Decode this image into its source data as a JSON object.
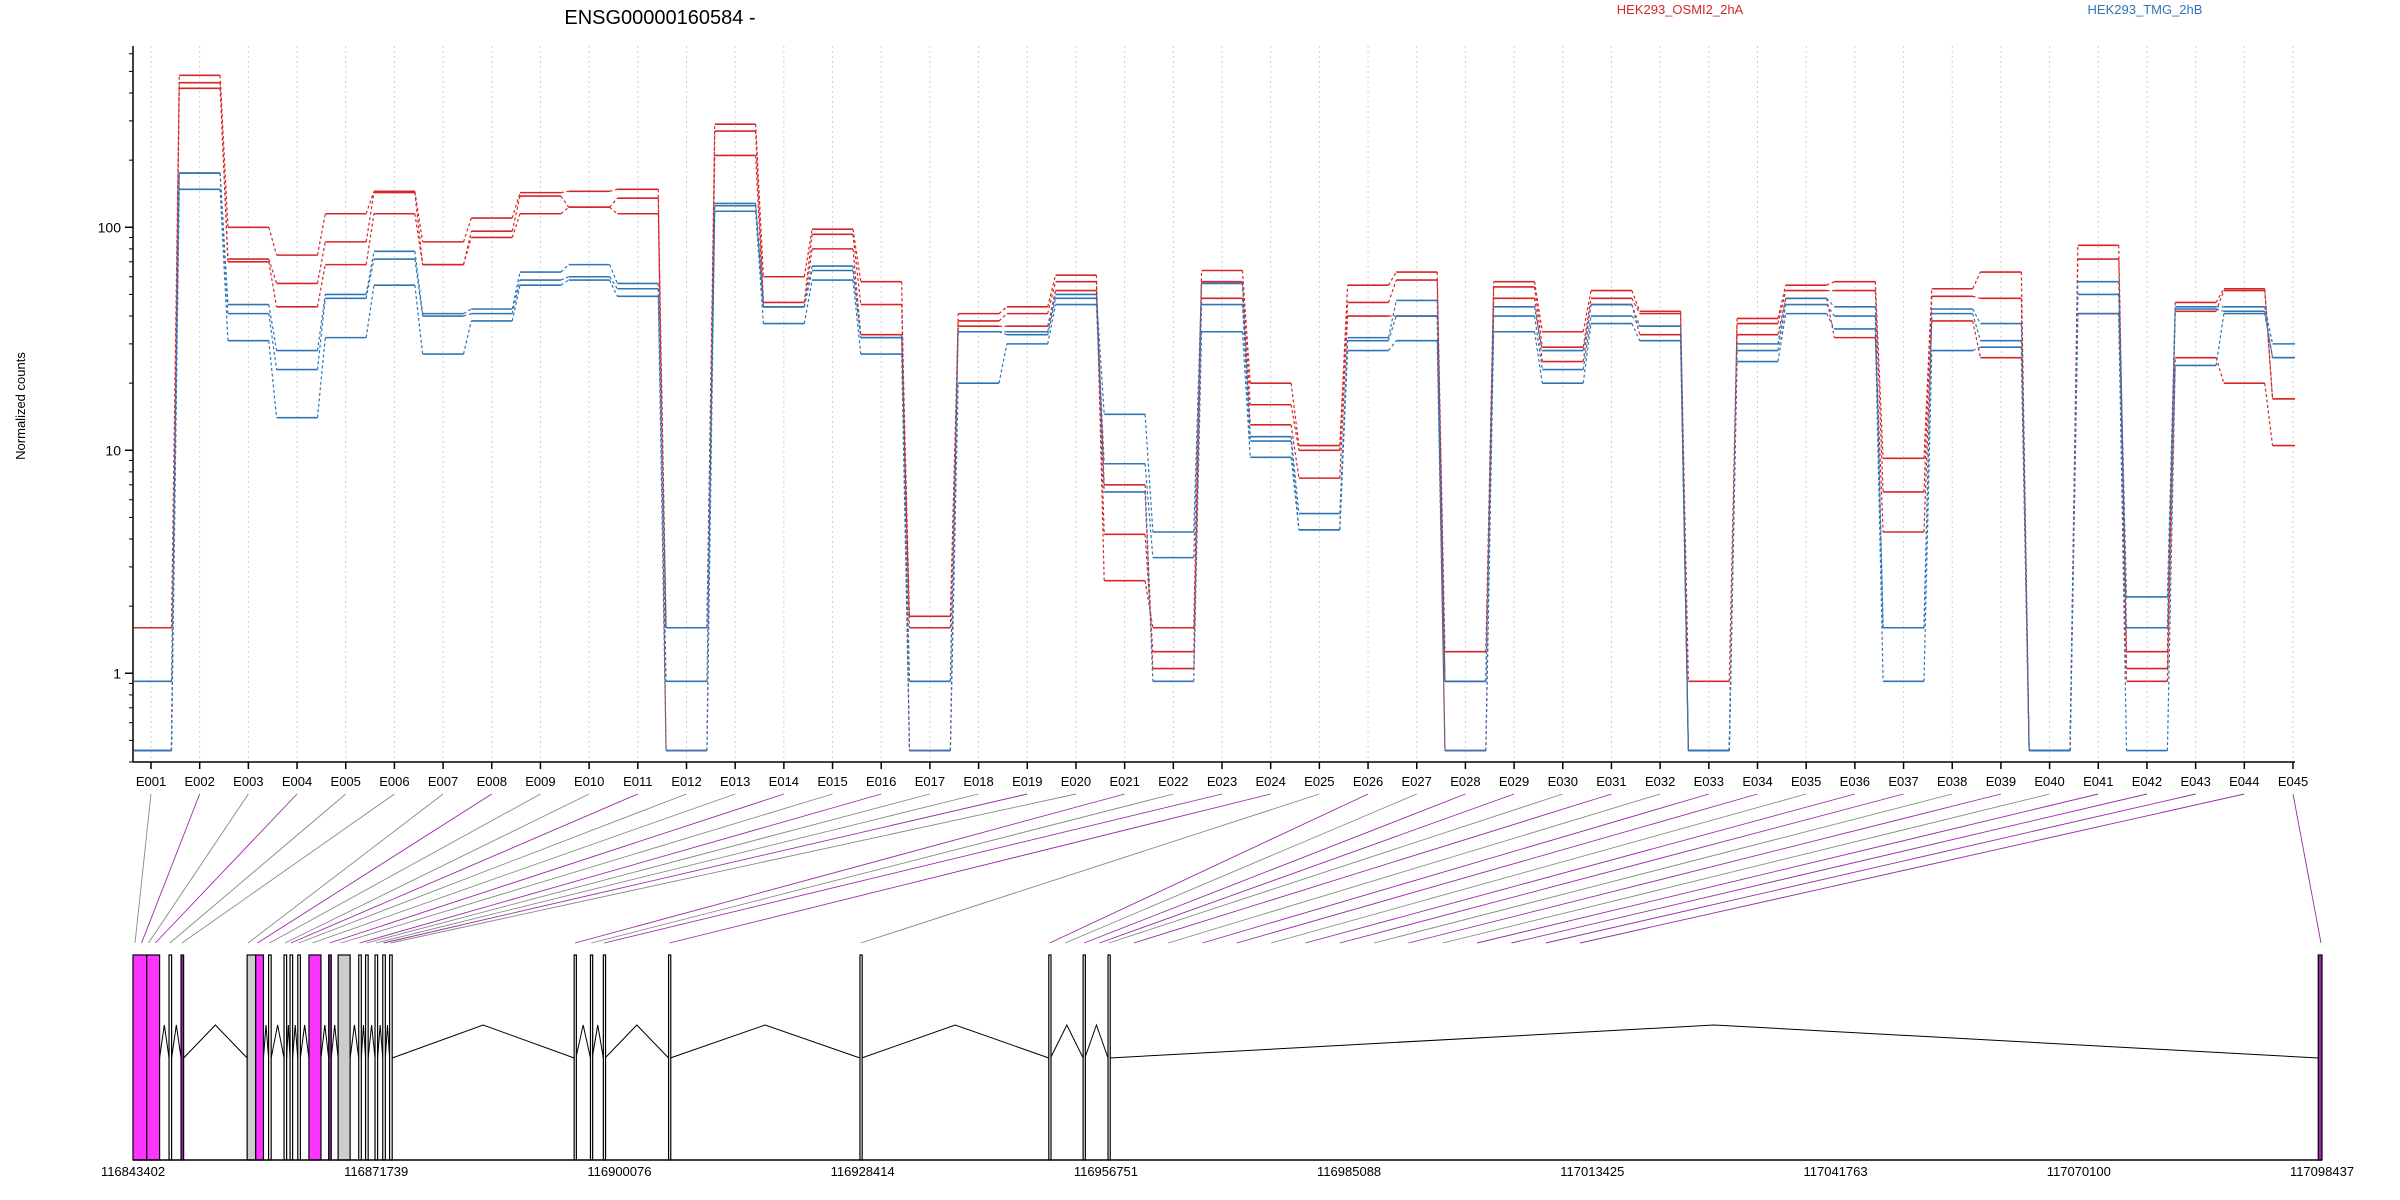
{
  "chart_data": {
    "type": "line",
    "title": "ENSG00000160584 -",
    "ylabel": "Normalized counts",
    "xlabel": "",
    "y_scale": "log",
    "ylim": [
      0.4,
      650
    ],
    "y_ticks": [
      {
        "v": 1,
        "label": "1"
      },
      {
        "v": 10,
        "label": "10"
      },
      {
        "v": 100,
        "label": "100"
      }
    ],
    "grid": "vertical dotted lines at exon positions",
    "legend": [
      {
        "name": "HEK293_OSMI2_2hA",
        "color": "#d62728"
      },
      {
        "name": "HEK293_TMG_2hB",
        "color": "#2f75b5"
      }
    ],
    "exons": [
      "E001",
      "E002",
      "E003",
      "E004",
      "E005",
      "E006",
      "E007",
      "E008",
      "E009",
      "E010",
      "E011",
      "E012",
      "E013",
      "E014",
      "E015",
      "E016",
      "E017",
      "E018",
      "E019",
      "E020",
      "E021",
      "E022",
      "E023",
      "E024",
      "E025",
      "E026",
      "E027",
      "E028",
      "E029",
      "E030",
      "E031",
      "E032",
      "E033",
      "E034",
      "E035",
      "E036",
      "E037",
      "E038",
      "E039",
      "E040",
      "E041",
      "E042",
      "E043",
      "E044",
      "E045"
    ],
    "series": [
      {
        "group": 0,
        "values": [
          0.45,
          480,
          100,
          75,
          115,
          145,
          86,
          110,
          143,
          145,
          148,
          0.45,
          290,
          60,
          98,
          57,
          0.45,
          41,
          44,
          61,
          2.6,
          1.6,
          64,
          20,
          10.5,
          55,
          63,
          1.25,
          57,
          34,
          52,
          42,
          0.45,
          39,
          55,
          57,
          9.2,
          53,
          63,
          0.45,
          83,
          1.25,
          46,
          53,
          17
        ]
      },
      {
        "group": 0,
        "values": [
          1.6,
          445,
          72,
          56,
          86,
          143,
          68,
          96,
          138,
          123,
          135,
          1.6,
          270,
          46,
          93,
          45,
          1.8,
          38,
          41,
          57,
          4.2,
          1.25,
          57,
          16,
          10,
          46,
          58,
          0.92,
          54,
          29,
          48,
          41,
          0.92,
          37,
          52,
          52,
          6.5,
          49,
          48,
          0.45,
          72,
          1.05,
          42,
          52,
          17
        ]
      },
      {
        "group": 0,
        "values": [
          0.45,
          420,
          70,
          44,
          68,
          115,
          68,
          90,
          115,
          123,
          115,
          1.6,
          210,
          44,
          80,
          33,
          1.6,
          36,
          36,
          52,
          7,
          1.05,
          48,
          13,
          7.5,
          40,
          40,
          0.45,
          48,
          25,
          45,
          33,
          0.45,
          33,
          48,
          32,
          4.3,
          38,
          26,
          0.45,
          41,
          0.92,
          26,
          20,
          10.5
        ]
      },
      {
        "group": 1,
        "values": [
          0.45,
          175,
          45,
          28,
          50,
          78,
          41,
          43,
          63,
          68,
          56,
          0.92,
          128,
          44,
          67,
          32,
          0.92,
          34,
          34,
          50,
          14.5,
          4.3,
          56,
          11.5,
          5.2,
          32,
          47,
          0.92,
          44,
          28,
          45,
          36,
          0.45,
          30,
          48,
          44,
          1.6,
          43,
          37,
          0.45,
          57,
          2.2,
          44,
          44,
          30
        ]
      },
      {
        "group": 1,
        "values": [
          0.92,
          175,
          41,
          23,
          48,
          72,
          40,
          41,
          58,
          60,
          53,
          1.6,
          125,
          44,
          64,
          32,
          0.92,
          34,
          33,
          48,
          8.7,
          3.3,
          45,
          11,
          4.4,
          31,
          40,
          0.92,
          40,
          23,
          40,
          36,
          0.45,
          28,
          45,
          40,
          1.6,
          41,
          31,
          0.45,
          50,
          1.6,
          43,
          42,
          26
        ]
      },
      {
        "group": 1,
        "values": [
          0.45,
          148,
          31,
          14,
          32,
          55,
          27,
          38,
          55,
          58,
          49,
          0.45,
          118,
          37,
          58,
          27,
          0.45,
          20,
          30,
          45,
          6.5,
          0.92,
          34,
          9.3,
          4.4,
          28,
          31,
          0.45,
          34,
          20,
          37,
          31,
          0.45,
          25,
          41,
          35,
          0.92,
          28,
          29,
          0.45,
          41,
          0.45,
          24,
          41,
          26
        ]
      }
    ],
    "genomic_axis": {
      "ticks": [
        "116843402",
        "116871739",
        "116900076",
        "116928414",
        "116956751",
        "116985088",
        "117013425",
        "117041763",
        "117070100",
        "117098437"
      ],
      "range": [
        116843402,
        117098437
      ]
    },
    "gene_model": {
      "exon_blocks": [
        {
          "start": 116843402,
          "end": 116845000,
          "fill": "#ff33ff",
          "kind": "tested"
        },
        {
          "start": 116845000,
          "end": 116846500,
          "fill": "#ff33ff",
          "kind": "tested"
        },
        {
          "start": 116847600,
          "end": 116847900,
          "fill": "#ffffff",
          "kind": "tested"
        },
        {
          "start": 116849000,
          "end": 116849300,
          "fill": "#9b2aa8",
          "kind": "tested"
        },
        {
          "start": 116856700,
          "end": 116857700,
          "fill": "#cccccc",
          "kind": "untested"
        },
        {
          "start": 116857700,
          "end": 116858600,
          "fill": "#ff33ff",
          "kind": "tested"
        },
        {
          "start": 116859200,
          "end": 116859500,
          "fill": "#ffffff",
          "kind": "tested"
        },
        {
          "start": 116861000,
          "end": 116861300,
          "fill": "#ffffff",
          "kind": "tested"
        },
        {
          "start": 116861700,
          "end": 116862000,
          "fill": "#ffffff",
          "kind": "tested"
        },
        {
          "start": 116862600,
          "end": 116862900,
          "fill": "#ffffff",
          "kind": "tested"
        },
        {
          "start": 116863900,
          "end": 116865300,
          "fill": "#ff33ff",
          "kind": "tested"
        },
        {
          "start": 116866200,
          "end": 116866500,
          "fill": "#9b2aa8",
          "kind": "tested"
        },
        {
          "start": 116867300,
          "end": 116868700,
          "fill": "#cccccc",
          "kind": "untested"
        },
        {
          "start": 116869700,
          "end": 116870000,
          "fill": "#ffffff",
          "kind": "tested"
        },
        {
          "start": 116870500,
          "end": 116870800,
          "fill": "#ffffff",
          "kind": "tested"
        },
        {
          "start": 116871600,
          "end": 116871900,
          "fill": "#ffffff",
          "kind": "tested"
        },
        {
          "start": 116872500,
          "end": 116872800,
          "fill": "#ffffff",
          "kind": "tested"
        },
        {
          "start": 116873300,
          "end": 116873600,
          "fill": "#ffffff",
          "kind": "tested"
        },
        {
          "start": 116894800,
          "end": 116895000,
          "fill": "#ffffff",
          "kind": "tested"
        },
        {
          "start": 116896700,
          "end": 116896900,
          "fill": "#ffffff",
          "kind": "tested"
        },
        {
          "start": 116898200,
          "end": 116898400,
          "fill": "#ffffff",
          "kind": "tested"
        },
        {
          "start": 116905800,
          "end": 116906000,
          "fill": "#ffffff",
          "kind": "tested"
        },
        {
          "start": 116928100,
          "end": 116928300,
          "fill": "#ffffff",
          "kind": "tested"
        },
        {
          "start": 116950100,
          "end": 116950300,
          "fill": "#ffffff",
          "kind": "tested"
        },
        {
          "start": 116954100,
          "end": 116954300,
          "fill": "#ffffff",
          "kind": "tested"
        },
        {
          "start": 116957000,
          "end": 116957200,
          "fill": "#ffffff",
          "kind": "tested"
        },
        {
          "start": 117098000,
          "end": 117098437,
          "fill": "#9b2aa8",
          "kind": "tested"
        }
      ],
      "introns": [
        [
          116849300,
          116856700
        ],
        [
          116873600,
          116894800
        ],
        [
          116898400,
          116905800
        ],
        [
          116906000,
          116928100
        ],
        [
          116928300,
          116950100
        ],
        [
          116957200,
          117098000
        ]
      ],
      "exon_map_genomic": [
        116843402,
        116844400,
        116845200,
        116846000,
        116847700,
        116849100,
        116856800,
        116857900,
        116859300,
        116861100,
        116861800,
        116862700,
        116864300,
        116866300,
        116867600,
        116869800,
        116870600,
        116871700,
        116872600,
        116873400,
        116894900,
        116896800,
        116898300,
        116905900,
        116928200,
        116950200,
        116952000,
        116954200,
        116956000,
        116957100,
        116960000,
        116964000,
        116968000,
        116972000,
        116976000,
        116980000,
        116984000,
        116988000,
        116992000,
        116996000,
        117000000,
        117004000,
        117008000,
        117012000,
        117098437
      ],
      "exon_map_color": [
        "#888888",
        "#9b2aa8",
        "#888888",
        "#9b2aa8",
        "#888888",
        "#888888",
        "#888888",
        "#9b2aa8",
        "#888888",
        "#888888",
        "#9b2aa8",
        "#888888",
        "#888888",
        "#9b2aa8",
        "#888888",
        "#9b2aa8",
        "#888888",
        "#888888",
        "#9b2aa8",
        "#888888",
        "#9b2aa8",
        "#888888",
        "#9b2aa8",
        "#9b2aa8",
        "#888888",
        "#9b2aa8",
        "#888888",
        "#9b2aa8",
        "#9b2aa8",
        "#888888",
        "#9b2aa8",
        "#888888",
        "#9b2aa8",
        "#9b2aa8",
        "#888888",
        "#9b2aa8",
        "#9b2aa8",
        "#888888",
        "#9b2aa8",
        "#888888",
        "#9b2aa8",
        "#9b2aa8",
        "#9b2aa8",
        "#9b2aa8",
        "#9b2aa8"
      ]
    }
  }
}
